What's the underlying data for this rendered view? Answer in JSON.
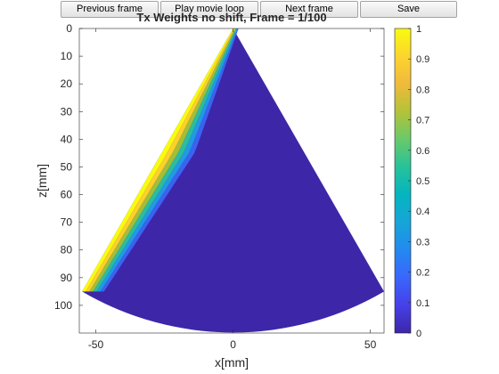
{
  "toolbar": {
    "previous_label": "Previous frame",
    "play_label": "Play movie loop",
    "next_label": "Next frame",
    "save_label": "Save"
  },
  "chart_data": {
    "type": "heatmap",
    "title": "Tx Weights no shift, Frame = 1/100",
    "xlabel": "x[mm]",
    "ylabel": "z[mm]",
    "xlim": [
      -56,
      55
    ],
    "ylim": [
      0,
      110
    ],
    "y_reversed": true,
    "x_ticks": [
      -50,
      0,
      50
    ],
    "y_ticks": [
      0,
      10,
      20,
      30,
      40,
      50,
      60,
      70,
      80,
      90,
      100
    ],
    "colorbar": {
      "colormap": "parula",
      "range": [
        0,
        1
      ],
      "ticks": [
        0,
        0.1,
        0.2,
        0.3,
        0.4,
        0.5,
        0.6,
        0.7,
        0.8,
        0.9,
        1
      ]
    },
    "sector": {
      "apex": [
        0,
        0
      ],
      "left_edge_end": [
        -55,
        95
      ],
      "right_edge_end": [
        55,
        95
      ],
      "max_depth": 110
    },
    "field_value": 0.0,
    "band_values": [
      1.0,
      0.9,
      0.75,
      0.55,
      0.35,
      0.18
    ]
  },
  "colors": {
    "field": "#3e26a8",
    "band": [
      "#f9fb0e",
      "#fdd02a",
      "#a5be36",
      "#2dbd9a",
      "#1f9be0",
      "#3963f0"
    ],
    "colorbar_stops": [
      "#3e26a8",
      "#4640e8",
      "#3a66fc",
      "#2389f0",
      "#17a5d7",
      "#04b5c0",
      "#26c29a",
      "#6ac96a",
      "#b4c239",
      "#f0ba3c",
      "#fcd52e",
      "#f9fb0e"
    ]
  }
}
